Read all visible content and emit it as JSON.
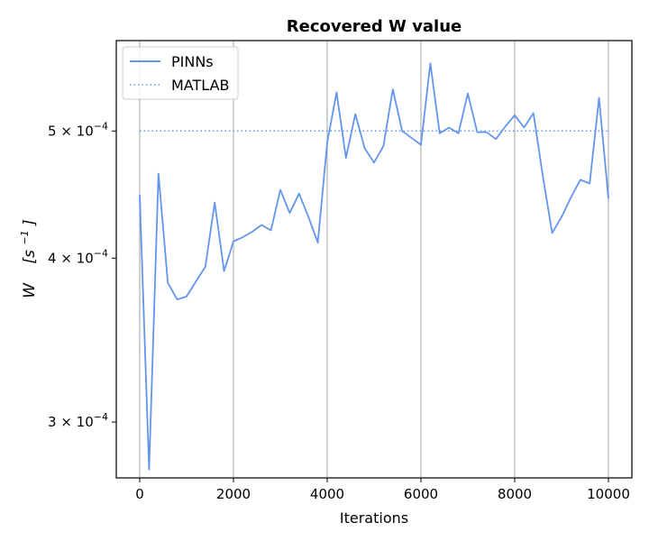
{
  "chart_data": {
    "type": "line",
    "title": "Recovered W value",
    "xlabel": "Iterations",
    "ylabel": "W",
    "ylabel_unit": "[s",
    "ylabel_unit_sup": "−1",
    "ylabel_unit_close": "]",
    "yscale": "log",
    "xlim": [
      -500,
      10500
    ],
    "ylim": [
      0.000272,
      0.000586
    ],
    "x_ticks": [
      0,
      2000,
      4000,
      6000,
      8000,
      10000
    ],
    "x_tick_labels": [
      "0",
      "2000",
      "4000",
      "6000",
      "8000",
      "10000"
    ],
    "y_ticks": [
      0.0003,
      0.0004,
      0.0005
    ],
    "y_tick_labels": [
      {
        "mantissa": "3",
        "mult": " × 10",
        "exp": "−4"
      },
      {
        "mantissa": "4",
        "mult": " × 10",
        "exp": "−4"
      },
      {
        "mantissa": "5",
        "mult": " × 10",
        "exp": "−4"
      }
    ],
    "grid": "vertical",
    "legend_position": "top-left",
    "series": [
      {
        "name": "PINNs",
        "style": "solid",
        "color": "#6495ed",
        "x": [
          0,
          200,
          400,
          600,
          800,
          1000,
          1200,
          1400,
          1600,
          1800,
          2000,
          2200,
          2400,
          2600,
          2800,
          3000,
          3200,
          3400,
          3600,
          3800,
          4000,
          4200,
          4400,
          4600,
          4800,
          5000,
          5200,
          5400,
          5600,
          5800,
          6000,
          6200,
          6400,
          6600,
          6800,
          7000,
          7200,
          7400,
          7600,
          7800,
          8000,
          8200,
          8400,
          8600,
          8800,
          9000,
          9200,
          9400,
          9600,
          9800,
          10000
        ],
        "y": [
          0.000447,
          0.000276,
          0.000464,
          0.000383,
          0.000372,
          0.000374,
          0.000384,
          0.000394,
          0.000441,
          0.000391,
          0.000412,
          0.000415,
          0.000419,
          0.000424,
          0.00042,
          0.000451,
          0.000433,
          0.000448,
          0.00043,
          0.000411,
          0.00049,
          0.000535,
          0.000477,
          0.000515,
          0.000485,
          0.000473,
          0.000487,
          0.000538,
          0.0005,
          0.000494,
          0.000488,
          0.000563,
          0.000498,
          0.000503,
          0.000498,
          0.000534,
          0.000499,
          0.000499,
          0.000493,
          0.000504,
          0.000514,
          0.000503,
          0.000516,
          0.000462,
          0.000418,
          0.00043,
          0.000445,
          0.000459,
          0.000456,
          0.00053,
          0.000444
        ]
      },
      {
        "name": "MATLAB",
        "style": "dotted",
        "color": "#6495ed",
        "x": [
          0,
          10000
        ],
        "y": [
          0.0005,
          0.0005
        ]
      }
    ]
  }
}
